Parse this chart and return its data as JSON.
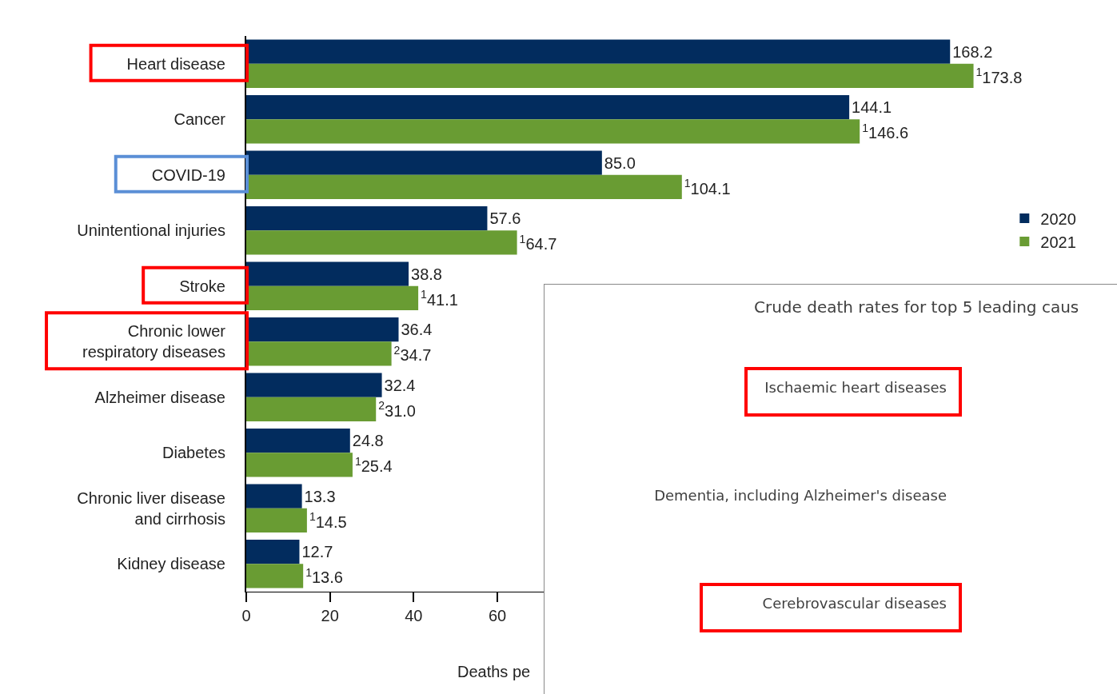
{
  "chart_data": [
    {
      "type": "bar",
      "orientation": "horizontal",
      "xlabel": "Deaths pe",
      "categories": [
        "Heart disease",
        "Cancer",
        "COVID-19",
        "Unintentional injuries",
        "Stroke",
        "Chronic lower respiratory diseases",
        "Alzheimer disease",
        "Diabetes",
        "Chronic liver disease and cirrhosis",
        "Kidney disease"
      ],
      "series": [
        {
          "name": "2020",
          "color": "#022c5e",
          "values": [
            168.2,
            144.1,
            85.0,
            57.6,
            38.8,
            36.4,
            32.4,
            24.8,
            13.3,
            12.7
          ],
          "value_labels": [
            "168.2",
            "144.1",
            "85.0",
            "57.6",
            "38.8",
            "36.4",
            "32.4",
            "24.8",
            "13.3",
            "12.7"
          ]
        },
        {
          "name": "2021",
          "color": "#699c33",
          "values": [
            173.8,
            146.6,
            104.1,
            64.7,
            41.1,
            34.7,
            31.0,
            25.4,
            14.5,
            13.6
          ],
          "value_labels": [
            "$^{1}$173.8",
            "$^{1}$146.6",
            "$^{1}$104.1",
            "$^{1}$64.7",
            "$^{1}$41.1",
            "$^{2}$34.7",
            "$^{2}$31.0",
            "$^{1}$25.4",
            "$^{1}$14.5",
            "$^{1}$13.6"
          ]
        }
      ],
      "xlim": [
        0,
        180
      ],
      "xticks": [
        0,
        20,
        40,
        60
      ],
      "grid": false,
      "legend": "right"
    },
    {
      "type": "other",
      "title": "Crude death rates for top 5 leading caus",
      "annotations": [
        "Ischaemic heart diseases",
        "Dementia, including Alzheimer's disease",
        "Cerebrovascular diseases"
      ]
    }
  ]
}
